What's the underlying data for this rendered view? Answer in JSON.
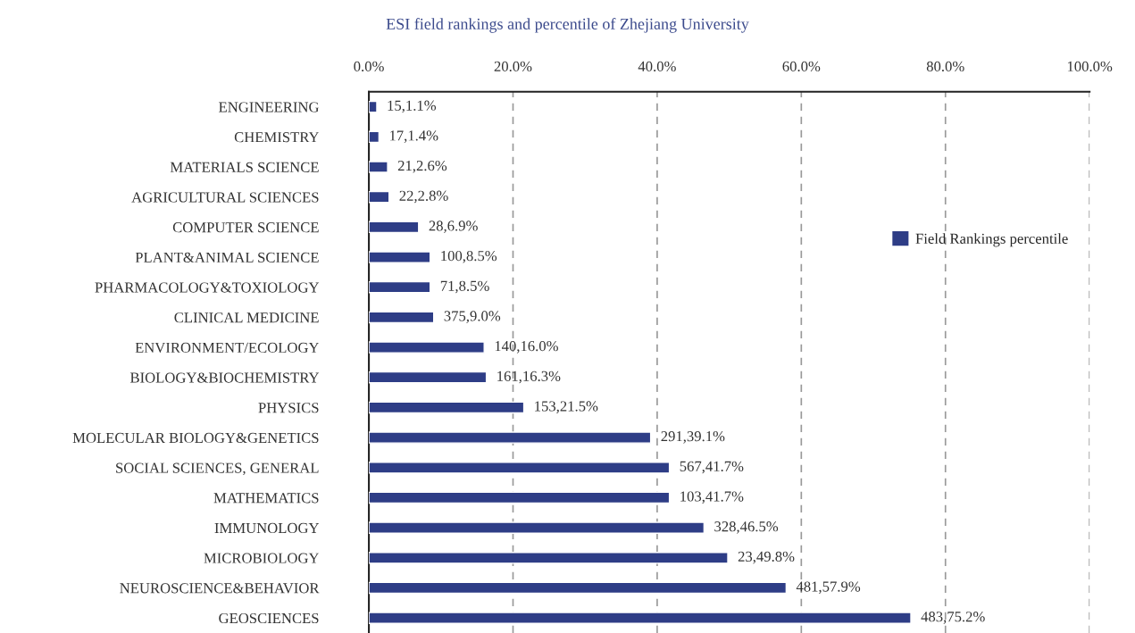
{
  "chart_data": {
    "type": "bar",
    "orientation": "horizontal",
    "title": "ESI field rankings and percentile of Zhejiang University",
    "categories": [
      "ENGINEERING",
      "CHEMISTRY",
      "MATERIALS SCIENCE",
      "AGRICULTURAL SCIENCES",
      "COMPUTER SCIENCE",
      "PLANT&ANIMAL SCIENCE",
      "PHARMACOLOGY&TOXIOLOGY",
      "CLINICAL MEDICINE",
      "ENVIRONMENT/ECOLOGY",
      "BIOLOGY&BIOCHEMISTRY",
      "PHYSICS",
      "MOLECULAR BIOLOGY&GENETICS",
      "SOCIAL SCIENCES, GENERAL",
      "MATHEMATICS",
      "IMMUNOLOGY",
      "MICROBIOLOGY",
      "NEUROSCIENCE&BEHAVIOR",
      "GEOSCIENCES"
    ],
    "series": [
      {
        "name": "Field Rankings percentile",
        "color": "#2e3d86",
        "values": [
          1.1,
          1.4,
          2.6,
          2.8,
          6.9,
          8.5,
          8.5,
          9.0,
          16.0,
          16.3,
          21.5,
          39.1,
          41.7,
          41.7,
          46.5,
          49.8,
          57.9,
          75.2
        ],
        "value_labels": [
          "15,1.1%",
          "17,1.4%",
          "21,2.6%",
          "22,2.8%",
          "28,6.9%",
          "100,8.5%",
          "71,8.5%",
          "375,9.0%",
          "140,16.0%",
          "161,16.3%",
          "153,21.5%",
          "291,39.1%",
          "567,41.7%",
          "103,41.7%",
          "328,46.5%",
          "23,49.8%",
          "481,57.9%",
          "483,75.2%"
        ]
      }
    ],
    "xlim": [
      0,
      100
    ],
    "xticks": [
      {
        "value": 0,
        "label": "0.0%"
      },
      {
        "value": 20,
        "label": "20.0%"
      },
      {
        "value": 40,
        "label": "40.0%"
      },
      {
        "value": 60,
        "label": "60.0%"
      },
      {
        "value": 80,
        "label": "80.0%"
      },
      {
        "value": 100,
        "label": "100.0%"
      }
    ],
    "grid": "x",
    "legend": "right"
  }
}
